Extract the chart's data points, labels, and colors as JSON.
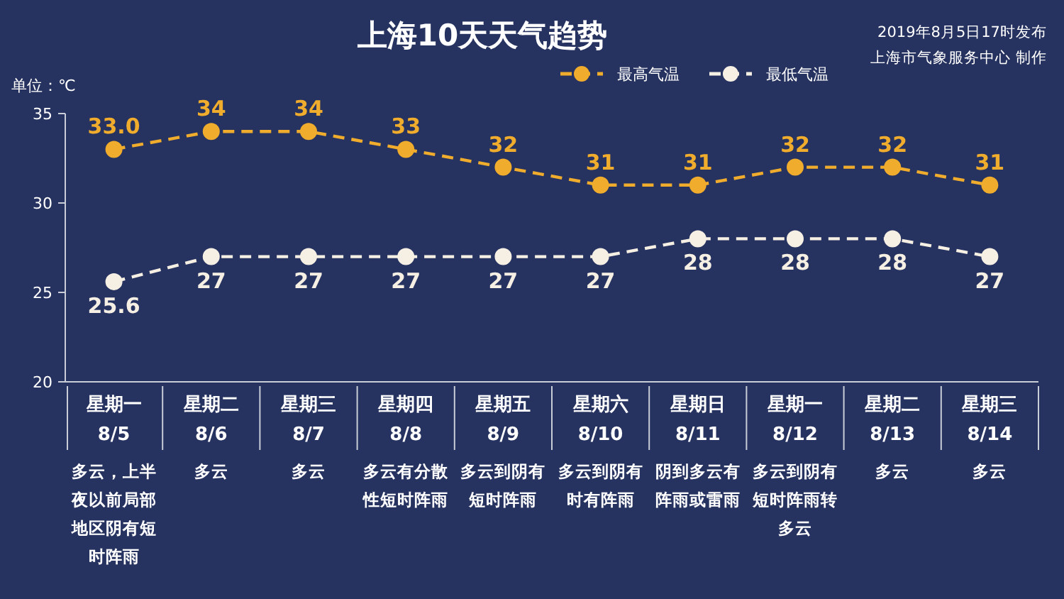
{
  "chart_data": {
    "type": "line",
    "title": "上海10天天气趋势",
    "ylabel": "单位：℃",
    "annotations": [
      "2019年8月5日17时发布",
      "上海市气象服务中心 制作",
      "多云，上半夜以前局部地区阴有短时阵雨",
      "多云",
      "多云",
      "多云有分散性短时阵雨",
      "多云到阴有短时阵雨",
      "多云到阴有时有阵雨",
      "阴到多云有阵雨或雷雨",
      "多云到阴有短时阵雨转多云",
      "多云",
      "多云"
    ],
    "categories": [
      "星期一\n8/5",
      "星期二\n8/6",
      "星期三\n8/7",
      "星期四\n8/8",
      "星期五\n8/9",
      "星期六\n8/10",
      "星期日\n8/11",
      "星期一\n8/12",
      "星期二\n8/13",
      "星期三\n8/14"
    ],
    "series": [
      {
        "name": "最高气温",
        "color": "#f0ac2c",
        "values": [
          33,
          34,
          34,
          33,
          32,
          31,
          31,
          32,
          32,
          31
        ],
        "value_labels": [
          "33.0",
          "34",
          "34",
          "33",
          "32",
          "31",
          "31",
          "32",
          "32",
          "31"
        ]
      },
      {
        "name": "最低气温",
        "color": "#f6efe4",
        "values": [
          25.6,
          27,
          27,
          27,
          27,
          27,
          28,
          28,
          28,
          27
        ],
        "value_labels": [
          "25.6",
          "27",
          "27",
          "27",
          "27",
          "27",
          "28",
          "28",
          "28",
          "27"
        ]
      }
    ],
    "ylim": [
      20,
      35
    ],
    "yticks": [
      20,
      25,
      30,
      35
    ],
    "grid": false,
    "legend": "top",
    "marker": "circle",
    "line_style": "dashed"
  }
}
